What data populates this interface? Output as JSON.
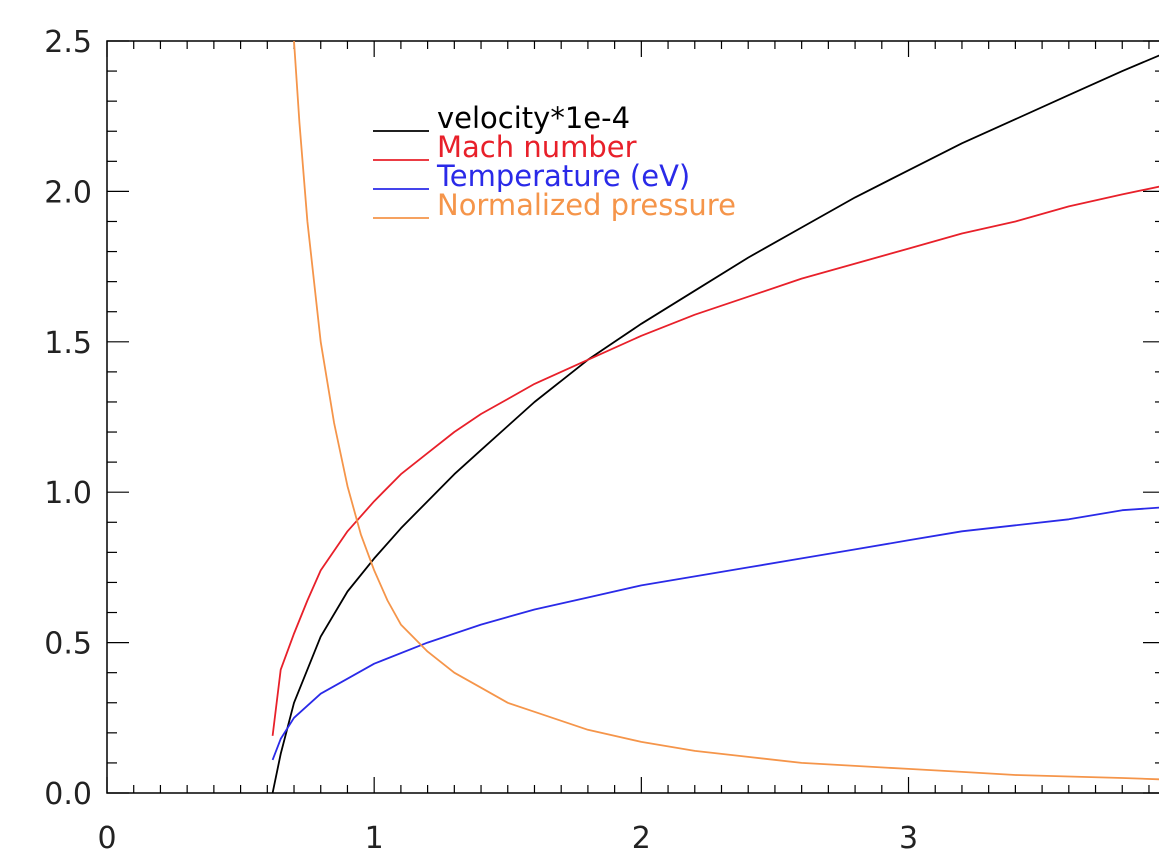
{
  "chart_data": {
    "type": "line",
    "title": "",
    "xlabel": "",
    "ylabel": "",
    "xlim": [
      0,
      3.96
    ],
    "ylim": [
      0,
      2.5
    ],
    "x_ticks": [
      0,
      1,
      2,
      3
    ],
    "x_tick_labels": [
      "0",
      "1",
      "2",
      "3"
    ],
    "y_ticks": [
      0,
      0.5,
      1.0,
      1.5,
      2.0,
      2.5
    ],
    "y_tick_labels": [
      "0.0",
      "0.5",
      "1.0",
      "1.5",
      "2.0",
      "2.5"
    ],
    "grid": false,
    "legend_position": "top-center",
    "series": [
      {
        "name": "velocity*1e-4",
        "color": "#000000",
        "x": [
          0.62,
          0.65,
          0.7,
          0.8,
          0.9,
          1.0,
          1.1,
          1.2,
          1.3,
          1.4,
          1.5,
          1.6,
          1.7,
          1.8,
          1.9,
          2.0,
          2.2,
          2.4,
          2.6,
          2.8,
          3.0,
          3.2,
          3.4,
          3.6,
          3.8,
          3.96
        ],
        "y": [
          0.0,
          0.13,
          0.3,
          0.52,
          0.67,
          0.78,
          0.88,
          0.97,
          1.06,
          1.14,
          1.22,
          1.3,
          1.37,
          1.44,
          1.5,
          1.56,
          1.67,
          1.78,
          1.88,
          1.98,
          2.07,
          2.16,
          2.24,
          2.32,
          2.4,
          2.46
        ]
      },
      {
        "name": "Mach number",
        "color": "#e8202a",
        "x": [
          0.62,
          0.65,
          0.7,
          0.75,
          0.8,
          0.9,
          1.0,
          1.1,
          1.2,
          1.3,
          1.4,
          1.5,
          1.6,
          1.8,
          2.0,
          2.2,
          2.4,
          2.6,
          2.8,
          3.0,
          3.2,
          3.4,
          3.6,
          3.8,
          3.96
        ],
        "y": [
          0.19,
          0.41,
          0.53,
          0.64,
          0.74,
          0.87,
          0.97,
          1.06,
          1.13,
          1.2,
          1.26,
          1.31,
          1.36,
          1.44,
          1.52,
          1.59,
          1.65,
          1.71,
          1.76,
          1.81,
          1.86,
          1.9,
          1.95,
          1.99,
          2.02
        ]
      },
      {
        "name": "Temperature (eV)",
        "color": "#2a2ae8",
        "x": [
          0.62,
          0.65,
          0.7,
          0.8,
          0.9,
          1.0,
          1.2,
          1.4,
          1.6,
          1.8,
          2.0,
          2.2,
          2.4,
          2.6,
          2.8,
          3.0,
          3.2,
          3.4,
          3.6,
          3.8,
          3.96
        ],
        "y": [
          0.11,
          0.18,
          0.25,
          0.33,
          0.38,
          0.43,
          0.5,
          0.56,
          0.61,
          0.65,
          0.69,
          0.72,
          0.75,
          0.78,
          0.81,
          0.84,
          0.87,
          0.89,
          0.91,
          0.94,
          0.95
        ]
      },
      {
        "name": "Normalized pressure",
        "color": "#f5954a",
        "x": [
          0.7,
          0.72,
          0.75,
          0.8,
          0.85,
          0.9,
          0.95,
          1.0,
          1.05,
          1.1,
          1.2,
          1.3,
          1.4,
          1.5,
          1.6,
          1.8,
          2.0,
          2.2,
          2.4,
          2.6,
          2.8,
          3.0,
          3.2,
          3.4,
          3.6,
          3.8,
          3.96
        ],
        "y": [
          2.5,
          2.23,
          1.9,
          1.5,
          1.23,
          1.02,
          0.86,
          0.74,
          0.64,
          0.56,
          0.47,
          0.4,
          0.35,
          0.3,
          0.27,
          0.21,
          0.17,
          0.14,
          0.12,
          0.1,
          0.09,
          0.08,
          0.07,
          0.06,
          0.055,
          0.05,
          0.045
        ]
      }
    ]
  }
}
